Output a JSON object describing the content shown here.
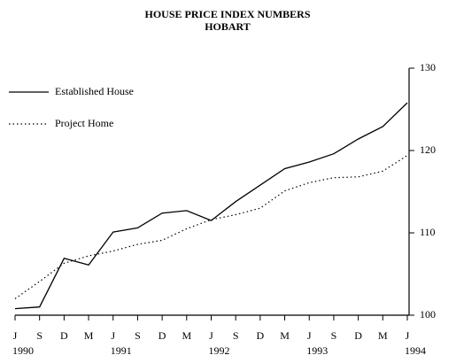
{
  "chart_data": {
    "type": "line",
    "title": [
      "HOUSE PRICE INDEX NUMBERS",
      "HOBART"
    ],
    "categories": [
      "J",
      "S",
      "D",
      "M",
      "J",
      "S",
      "D",
      "M",
      "J",
      "S",
      "D",
      "M",
      "J",
      "S",
      "D",
      "M",
      "J"
    ],
    "category_years": [
      "1990",
      null,
      null,
      null,
      "1991",
      null,
      null,
      null,
      "1992",
      null,
      null,
      null,
      "1993",
      null,
      null,
      null,
      "1994"
    ],
    "series": [
      {
        "name": "Established House",
        "color": "#000000",
        "dash": "solid",
        "values": [
          100.8,
          101.0,
          106.9,
          106.1,
          110.1,
          110.6,
          112.4,
          112.7,
          111.5,
          113.8,
          115.8,
          117.8,
          118.6,
          119.6,
          121.4,
          122.9,
          125.8
        ]
      },
      {
        "name": "Project Home",
        "color": "#000000",
        "dash": "dotted",
        "values": [
          102.0,
          104.1,
          106.3,
          107.2,
          107.8,
          108.6,
          109.1,
          110.5,
          111.6,
          112.2,
          113.0,
          115.1,
          116.1,
          116.7,
          116.8,
          117.5,
          119.4
        ]
      }
    ],
    "ylim": [
      100,
      130
    ],
    "yticks": [
      100,
      110,
      120,
      130
    ],
    "legend": "upper left",
    "y_axis_side": "right"
  }
}
